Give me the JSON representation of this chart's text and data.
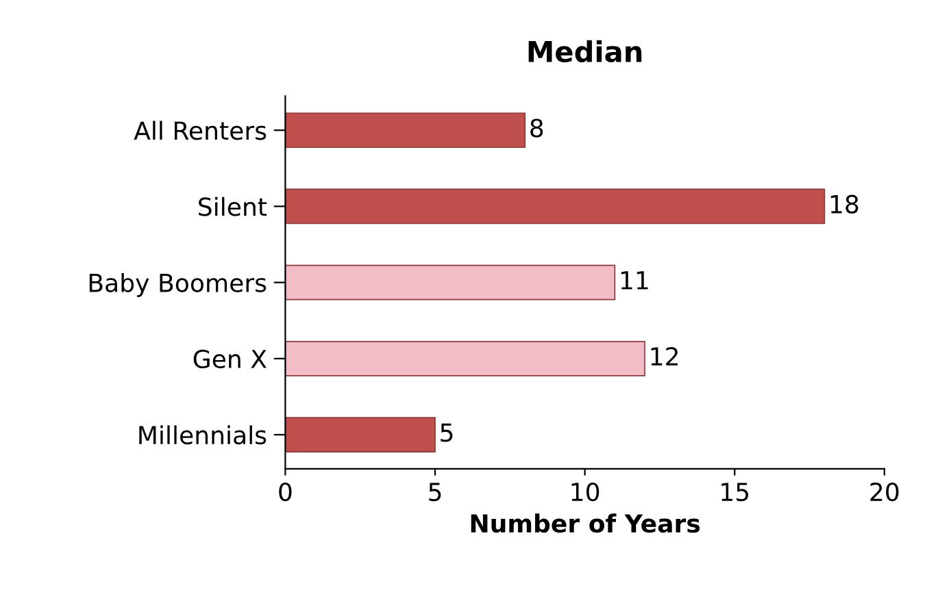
{
  "chart_data": {
    "type": "bar",
    "orientation": "horizontal",
    "title": "Median",
    "xlabel": "Number of Years",
    "categories": [
      "All Renters",
      "Silent",
      "Baby Boomers",
      "Gen X",
      "Millennials"
    ],
    "values": [
      8,
      18,
      11,
      12,
      5
    ],
    "colors": [
      "#c0504d",
      "#c0504d",
      "#f4bcc6",
      "#f4bcc6",
      "#c0504d"
    ],
    "xlim": [
      0,
      20
    ],
    "xticks": [
      0,
      5,
      10,
      15,
      20
    ],
    "data_labels": true,
    "grid": false,
    "legend": false
  }
}
